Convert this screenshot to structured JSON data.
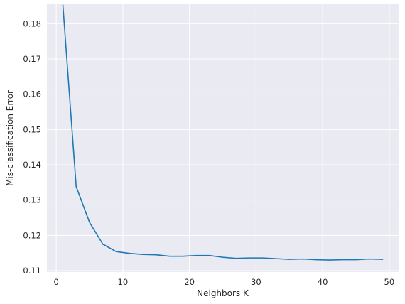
{
  "chart_data": {
    "type": "line",
    "title": "",
    "xlabel": "Neighbors K",
    "ylabel": "Mis-classification Error",
    "xlim": [
      -1.4,
      51.4
    ],
    "ylim": [
      0.1096,
      0.1855
    ],
    "grid": true,
    "colors": {
      "background": "#eaeaf2",
      "grid": "#ffffff",
      "line": "#1f77b4"
    },
    "x_ticks": [
      {
        "value": 0,
        "label": "0"
      },
      {
        "value": 10,
        "label": "10"
      },
      {
        "value": 20,
        "label": "20"
      },
      {
        "value": 30,
        "label": "30"
      },
      {
        "value": 40,
        "label": "40"
      },
      {
        "value": 50,
        "label": "50"
      }
    ],
    "y_ticks": [
      {
        "value": 0.11,
        "label": "0.11"
      },
      {
        "value": 0.12,
        "label": "0.12"
      },
      {
        "value": 0.13,
        "label": "0.13"
      },
      {
        "value": 0.14,
        "label": "0.14"
      },
      {
        "value": 0.15,
        "label": "0.15"
      },
      {
        "value": 0.16,
        "label": "0.16"
      },
      {
        "value": 0.17,
        "label": "0.17"
      },
      {
        "value": 0.18,
        "label": "0.18"
      }
    ],
    "series": [
      {
        "x": [
          1,
          3,
          5,
          7,
          9,
          11,
          13,
          15,
          17,
          19,
          21,
          23,
          25,
          27,
          29,
          31,
          33,
          35,
          37,
          39,
          41,
          43,
          45,
          47,
          49
        ],
        "y": [
          0.1853,
          0.1338,
          0.1237,
          0.1175,
          0.1154,
          0.1149,
          0.1146,
          0.1145,
          0.1141,
          0.1141,
          0.1143,
          0.1143,
          0.1138,
          0.1135,
          0.1136,
          0.1136,
          0.1134,
          0.1132,
          0.1133,
          0.1131,
          0.113,
          0.1131,
          0.1131,
          0.1133,
          0.1132
        ]
      }
    ]
  }
}
